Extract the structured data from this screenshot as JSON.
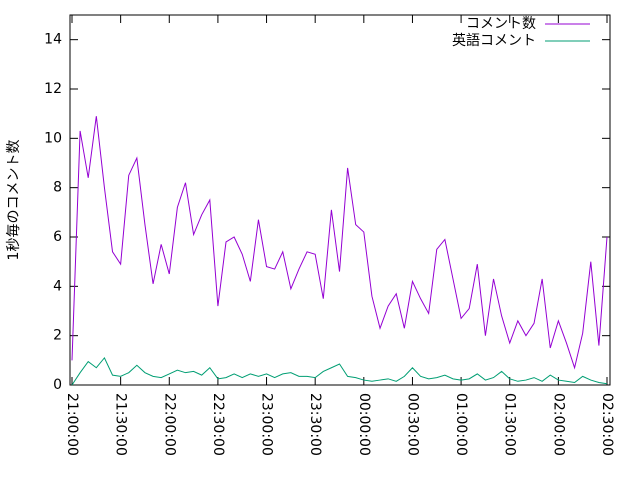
{
  "chart_data": {
    "type": "line",
    "ylabel": "1秒毎のコメント数",
    "categories": [
      "21:00:00",
      null,
      null,
      null,
      null,
      null,
      "21:30:00",
      null,
      null,
      null,
      null,
      null,
      "22:00:00",
      null,
      null,
      null,
      null,
      null,
      "22:30:00",
      null,
      null,
      null,
      null,
      null,
      "23:00:00",
      null,
      null,
      null,
      null,
      null,
      "23:30:00",
      null,
      null,
      null,
      null,
      null,
      "00:00:00",
      null,
      null,
      null,
      null,
      null,
      "00:30:00",
      null,
      null,
      null,
      null,
      null,
      "01:00:00",
      null,
      null,
      null,
      null,
      null,
      "01:30:00",
      null,
      null,
      null,
      null,
      null,
      "02:00:00",
      null,
      null,
      null,
      null,
      null,
      "02:30:00"
    ],
    "series": [
      {
        "name": "コメント数",
        "color": "#9400d3",
        "values": [
          1.0,
          10.3,
          8.4,
          10.9,
          8.0,
          5.4,
          4.9,
          8.5,
          9.2,
          6.5,
          4.1,
          5.7,
          4.5,
          7.2,
          8.2,
          6.1,
          6.9,
          7.5,
          3.2,
          5.8,
          6.0,
          5.3,
          4.2,
          6.7,
          4.8,
          4.7,
          5.4,
          3.9,
          4.7,
          5.4,
          5.3,
          3.5,
          7.1,
          4.6,
          8.8,
          6.5,
          6.2,
          3.6,
          2.3,
          3.2,
          3.7,
          2.3,
          4.2,
          3.5,
          2.9,
          5.5,
          5.9,
          4.3,
          2.7,
          3.1,
          4.9,
          2.0,
          4.3,
          2.8,
          1.7,
          2.6,
          2.0,
          2.5,
          4.3,
          1.5,
          2.6,
          1.7,
          0.7,
          2.1,
          5.0,
          1.6,
          6.0
        ]
      },
      {
        "name": "英語コメント",
        "color": "#009e73",
        "values": [
          0.0,
          0.5,
          0.95,
          0.7,
          1.1,
          0.4,
          0.35,
          0.5,
          0.8,
          0.5,
          0.35,
          0.3,
          0.45,
          0.6,
          0.5,
          0.55,
          0.4,
          0.7,
          0.25,
          0.3,
          0.45,
          0.3,
          0.45,
          0.35,
          0.45,
          0.3,
          0.45,
          0.5,
          0.35,
          0.35,
          0.3,
          0.55,
          0.7,
          0.85,
          0.35,
          0.3,
          0.2,
          0.15,
          0.2,
          0.25,
          0.15,
          0.35,
          0.7,
          0.35,
          0.25,
          0.3,
          0.4,
          0.25,
          0.2,
          0.25,
          0.45,
          0.2,
          0.3,
          0.55,
          0.25,
          0.15,
          0.2,
          0.3,
          0.15,
          0.4,
          0.2,
          0.15,
          0.1,
          0.35,
          0.2,
          0.1,
          0.05
        ]
      }
    ],
    "ylim": [
      0,
      15
    ],
    "yticks": [
      0,
      2,
      4,
      6,
      8,
      10,
      12,
      14
    ],
    "legend": "upper right"
  }
}
